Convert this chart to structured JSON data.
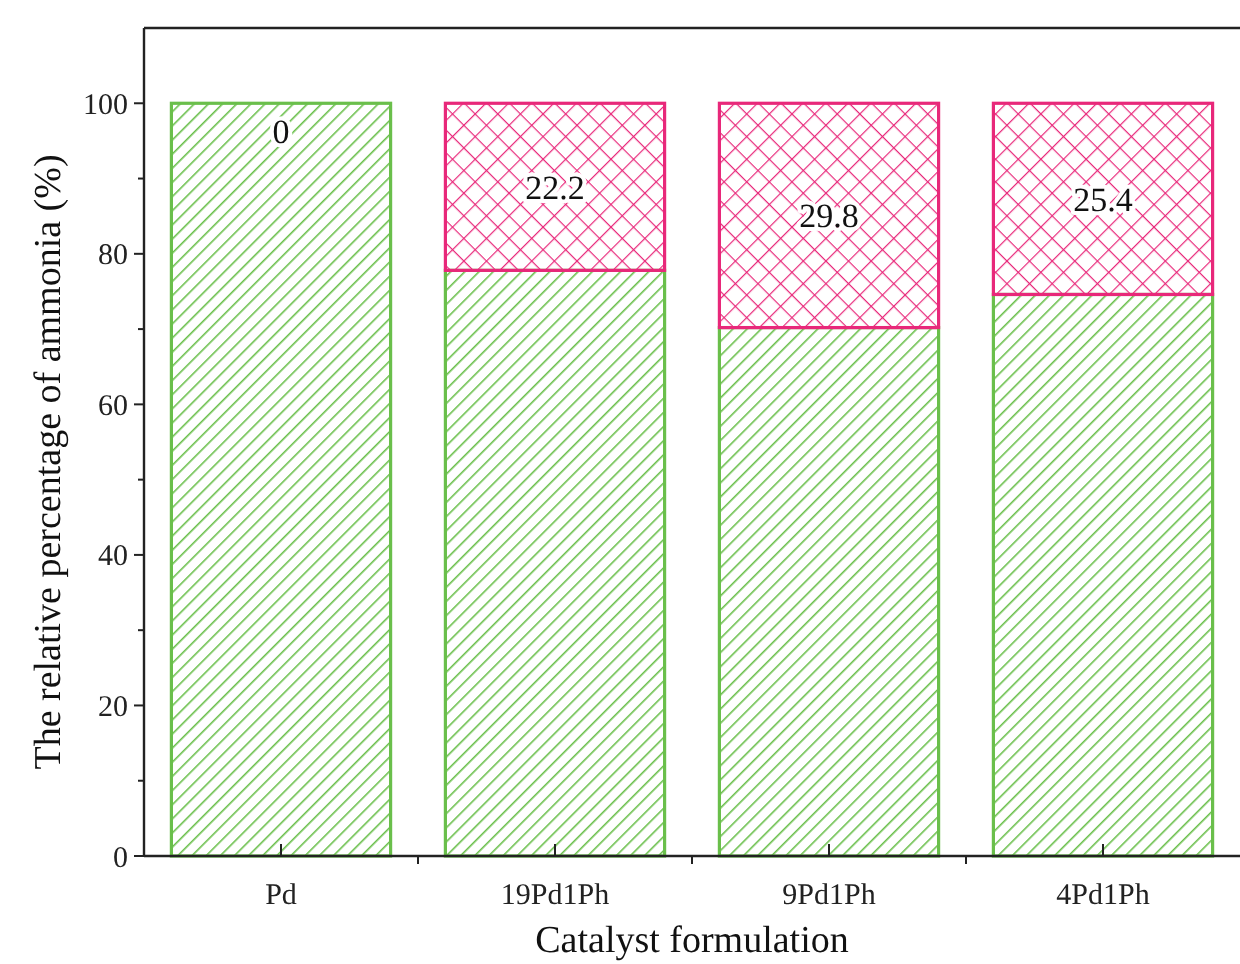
{
  "chart_data": {
    "type": "bar",
    "stacked": true,
    "xlabel": "Catalyst formulation",
    "ylabel": "The relative percentage of ammonia (%)",
    "categories": [
      "Pd",
      "19Pd1Ph",
      "9Pd1Ph",
      "4Pd1Ph"
    ],
    "series": [
      {
        "color": "#6abf4b",
        "values": [
          100,
          77.8,
          70.2,
          74.6
        ]
      },
      {
        "color": "#e8287a",
        "values": [
          0,
          22.2,
          29.8,
          25.4
        ],
        "value_labels": [
          "0",
          "22.2",
          "29.8",
          "25.4"
        ]
      }
    ],
    "ylim": [
      0,
      110
    ],
    "yticks": [
      0,
      {
        "value": 10,
        "label": null
      },
      20,
      {
        "value": 30,
        "label": null
      },
      40,
      {
        "value": 50,
        "label": null
      },
      60,
      {
        "value": 70,
        "label": null
      },
      80,
      {
        "value": 90,
        "label": null
      },
      100
    ],
    "grid": false
  }
}
